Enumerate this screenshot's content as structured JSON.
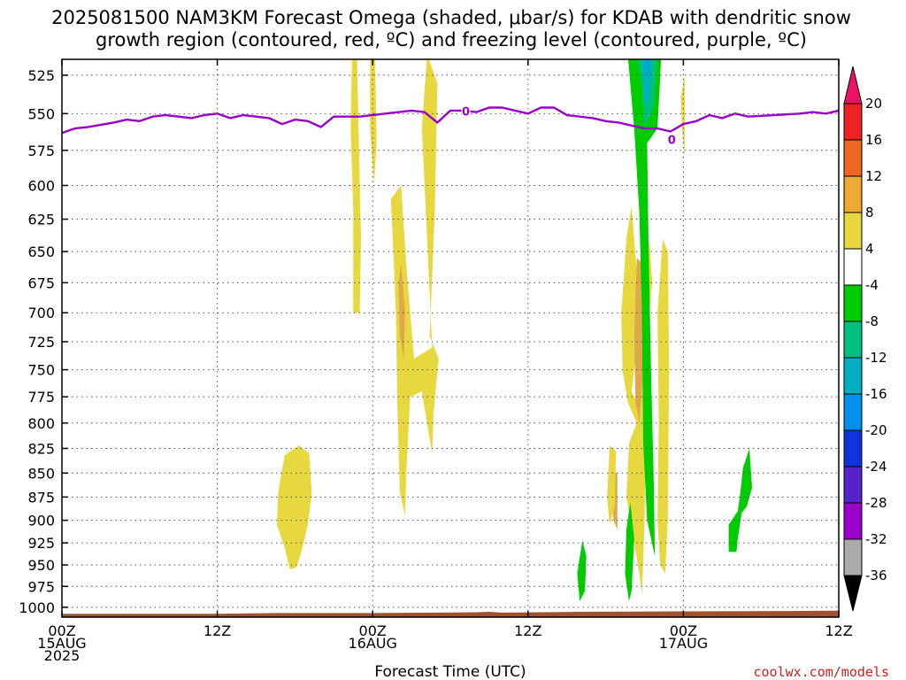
{
  "chart_data": {
    "type": "heatmap",
    "title_line1": "2025081500 NAM3KM Forecast Omega (shaded, μbar/s) for KDAB with dendritic snow",
    "title_line2": "growth region (contoured, red, ºC) and freezing level (contoured, purple, ºC)",
    "xlabel": "Forecast Time (UTC)",
    "credit": "coolwx.com/models",
    "x_ticks": [
      {
        "hour": 0,
        "lines": [
          "00Z",
          "15AUG",
          "2025"
        ]
      },
      {
        "hour": 12,
        "lines": [
          "12Z"
        ]
      },
      {
        "hour": 24,
        "lines": [
          "00Z",
          "16AUG"
        ]
      },
      {
        "hour": 36,
        "lines": [
          "12Z"
        ]
      },
      {
        "hour": 48,
        "lines": [
          "00Z",
          "17AUG"
        ]
      },
      {
        "hour": 60,
        "lines": [
          "12Z"
        ]
      }
    ],
    "xlim": [
      0,
      60
    ],
    "y_levels_hPa": [
      525,
      550,
      575,
      600,
      625,
      650,
      675,
      700,
      725,
      750,
      775,
      800,
      825,
      850,
      875,
      900,
      925,
      950,
      975,
      1000
    ],
    "ylim": [
      515,
      1012
    ],
    "y_scale": "log-pressure (inverted)",
    "grid": true,
    "colorbar": {
      "labels": [
        "20",
        "16",
        "12",
        "8",
        "4",
        "-4",
        "-8",
        "-12",
        "-16",
        "-20",
        "-24",
        "-28",
        "-32",
        "-36"
      ],
      "colors": [
        "#ee1166",
        "#ee2222",
        "#ee6622",
        "#eeaa33",
        "#e8d840",
        "#ffffff",
        "#00cc00",
        "#00c080",
        "#00b0c0",
        "#0090ee",
        "#1133dd",
        "#5522cc",
        "#9900cc",
        "#aaaaaa",
        "#000000"
      ]
    },
    "colors": {
      "omega_4_8": "#e8d840",
      "omega_8_12": "#e0a848",
      "omega_12_16": "#e07030",
      "omega_neg4_neg8": "#00cc00",
      "omega_neg8_neg12": "#00c080",
      "omega_neg12_neg16": "#00b0c0",
      "omega_neg16_neg20": "#0090ee",
      "freezing_level": "#9900cc",
      "terrain": "#a0522d"
    },
    "freezing_level_hPa": [
      [
        0,
        563
      ],
      [
        1,
        560
      ],
      [
        2,
        559
      ],
      [
        4,
        556
      ],
      [
        5,
        554
      ],
      [
        6,
        555
      ],
      [
        7,
        552
      ],
      [
        8,
        551
      ],
      [
        10,
        553
      ],
      [
        11,
        551
      ],
      [
        12,
        550
      ],
      [
        13,
        553
      ],
      [
        14,
        551
      ],
      [
        16,
        553
      ],
      [
        17,
        557
      ],
      [
        18,
        554
      ],
      [
        19,
        555
      ],
      [
        20,
        559
      ],
      [
        21,
        552
      ],
      [
        23,
        552
      ],
      [
        25,
        550
      ],
      [
        27,
        548
      ],
      [
        28,
        549
      ],
      [
        29,
        556
      ],
      [
        30,
        548
      ],
      [
        31,
        548
      ],
      [
        32,
        549
      ],
      [
        33,
        546
      ],
      [
        34,
        546
      ],
      [
        35,
        548
      ],
      [
        36,
        550
      ],
      [
        37,
        546
      ],
      [
        38,
        546
      ],
      [
        39,
        551
      ],
      [
        40,
        552
      ],
      [
        41,
        553
      ],
      [
        42,
        555
      ],
      [
        43,
        556
      ],
      [
        44,
        558
      ],
      [
        45,
        560
      ],
      [
        46,
        560
      ],
      [
        47,
        562
      ],
      [
        48,
        557
      ],
      [
        49,
        555
      ],
      [
        50,
        551
      ],
      [
        51,
        553
      ],
      [
        52,
        550
      ],
      [
        53,
        552
      ],
      [
        55,
        551
      ],
      [
        57,
        550
      ],
      [
        58,
        549
      ],
      [
        59,
        550
      ],
      [
        60,
        548
      ]
    ],
    "freezing_label": "0",
    "freezing_label_hours": [
      31.2,
      47.1
    ],
    "terrain_hPa": [
      [
        0,
        1008
      ],
      [
        12,
        1008
      ],
      [
        16.5,
        1007
      ],
      [
        24,
        1007
      ],
      [
        32,
        1006
      ],
      [
        33,
        1005.5
      ],
      [
        34,
        1006.5
      ],
      [
        40,
        1005.5
      ],
      [
        48,
        1005
      ],
      [
        56,
        1004.5
      ],
      [
        60,
        1004
      ]
    ],
    "regions": [
      {
        "band": "4_8",
        "pts": [
          [
            22.4,
            515
          ],
          [
            22.8,
            515
          ],
          [
            23.1,
            640
          ],
          [
            23.0,
            700
          ],
          [
            22.5,
            700
          ],
          [
            22.5,
            620
          ],
          [
            22.3,
            560
          ]
        ]
      },
      {
        "band": "4_8",
        "pts": [
          [
            23.8,
            515
          ],
          [
            24.2,
            515
          ],
          [
            24.3,
            570
          ],
          [
            24.1,
            600
          ],
          [
            23.8,
            560
          ]
        ]
      },
      {
        "band": "4_8",
        "pts": [
          [
            25.4,
            610
          ],
          [
            26.2,
            600
          ],
          [
            26.6,
            660
          ],
          [
            26.9,
            700
          ],
          [
            27.2,
            740
          ],
          [
            28.6,
            730
          ],
          [
            27.8,
            560
          ],
          [
            28.2,
            512
          ],
          [
            29.0,
            530
          ],
          [
            28.8,
            620
          ],
          [
            28.4,
            720
          ],
          [
            29.1,
            740
          ],
          [
            28.7,
            790
          ],
          [
            28.6,
            830
          ],
          [
            28.2,
            800
          ],
          [
            27.8,
            770
          ],
          [
            26.9,
            775
          ],
          [
            26.6,
            850
          ],
          [
            26.5,
            895
          ],
          [
            26.1,
            870
          ],
          [
            25.9,
            780
          ],
          [
            25.8,
            700
          ],
          [
            25.6,
            650
          ]
        ]
      },
      {
        "band": "8_12",
        "pts": [
          [
            26.0,
            675
          ],
          [
            26.2,
            660
          ],
          [
            26.5,
            700
          ],
          [
            26.4,
            740
          ],
          [
            26.1,
            720
          ]
        ]
      },
      {
        "band": "4_8",
        "pts": [
          [
            17.2,
            832
          ],
          [
            18.3,
            822
          ],
          [
            19.1,
            830
          ],
          [
            19.3,
            870
          ],
          [
            19.0,
            905
          ],
          [
            18.5,
            935
          ],
          [
            18.1,
            953
          ],
          [
            17.6,
            955
          ],
          [
            17.2,
            930
          ],
          [
            16.6,
            905
          ],
          [
            16.7,
            870
          ]
        ]
      },
      {
        "band": "4_8",
        "pts": [
          [
            44.0,
            615
          ],
          [
            44.5,
            680
          ],
          [
            44.3,
            740
          ],
          [
            44.0,
            770
          ],
          [
            44.6,
            785
          ],
          [
            45.6,
            675
          ],
          [
            45.4,
            645
          ],
          [
            44.9,
            640
          ],
          [
            44.8,
            625
          ],
          [
            45.2,
            720
          ],
          [
            45.0,
            900
          ],
          [
            44.8,
            985
          ],
          [
            44.6,
            960
          ],
          [
            44.2,
            925
          ],
          [
            43.6,
            875
          ],
          [
            43.8,
            820
          ],
          [
            44.4,
            800
          ],
          [
            43.7,
            780
          ],
          [
            43.3,
            750
          ],
          [
            43.2,
            700
          ],
          [
            43.6,
            640
          ]
        ]
      },
      {
        "band": "8_12",
        "pts": [
          [
            44.4,
            655
          ],
          [
            44.9,
            660
          ],
          [
            44.9,
            750
          ],
          [
            44.6,
            800
          ],
          [
            44.3,
            780
          ],
          [
            44.2,
            720
          ]
        ]
      },
      {
        "band": "8_12",
        "pts": [
          [
            42.6,
            850
          ],
          [
            42.9,
            850
          ],
          [
            42.9,
            910
          ],
          [
            42.6,
            900
          ],
          [
            42.5,
            880
          ]
        ]
      },
      {
        "band": "4_8",
        "pts": [
          [
            46.4,
            640
          ],
          [
            46.8,
            650
          ],
          [
            46.9,
            750
          ],
          [
            46.8,
            900
          ],
          [
            46.6,
            960
          ],
          [
            46.2,
            950
          ],
          [
            46.0,
            900
          ],
          [
            46.1,
            800
          ],
          [
            46.0,
            700
          ]
        ]
      },
      {
        "band": "4_8",
        "pts": [
          [
            47.8,
            540
          ],
          [
            48.1,
            525
          ],
          [
            48.1,
            580
          ],
          [
            47.9,
            560
          ]
        ]
      },
      {
        "band": "neg4_neg8",
        "pts": [
          [
            43.7,
            512
          ],
          [
            46.3,
            512
          ],
          [
            46.0,
            560
          ],
          [
            45.2,
            570
          ],
          [
            45.3,
            640
          ],
          [
            45.5,
            750
          ],
          [
            45.7,
            850
          ],
          [
            45.8,
            940
          ],
          [
            45.2,
            900
          ],
          [
            44.9,
            820
          ],
          [
            44.8,
            700
          ],
          [
            44.6,
            620
          ],
          [
            44.2,
            560
          ]
        ]
      },
      {
        "band": "neg8_neg12",
        "pts": [
          [
            44.4,
            512
          ],
          [
            46.0,
            512
          ],
          [
            45.7,
            545
          ],
          [
            45.0,
            560
          ],
          [
            44.8,
            530
          ]
        ]
      },
      {
        "band": "neg12_neg16",
        "pts": [
          [
            44.8,
            512
          ],
          [
            45.6,
            512
          ],
          [
            45.3,
            540
          ],
          [
            45.0,
            545
          ]
        ]
      },
      {
        "band": "neg16_neg20",
        "pts": [
          [
            45.1,
            512
          ],
          [
            45.4,
            512
          ],
          [
            45.3,
            525
          ]
        ]
      },
      {
        "band": "neg4_neg8",
        "pts": [
          [
            43.9,
            880
          ],
          [
            44.2,
            920
          ],
          [
            44.0,
            980
          ],
          [
            43.8,
            993
          ],
          [
            43.5,
            960
          ],
          [
            43.6,
            910
          ]
        ]
      },
      {
        "band": "neg4_neg8",
        "pts": [
          [
            40.2,
            922
          ],
          [
            40.5,
            940
          ],
          [
            40.4,
            980
          ],
          [
            40.0,
            993
          ],
          [
            39.8,
            960
          ]
        ]
      },
      {
        "band": "4_8",
        "pts": [
          [
            42.3,
            822
          ],
          [
            42.8,
            828
          ],
          [
            42.7,
            885
          ],
          [
            42.3,
            905
          ],
          [
            42.1,
            875
          ]
        ]
      },
      {
        "band": "neg4_neg8",
        "pts": [
          [
            51.5,
            905
          ],
          [
            52.2,
            890
          ],
          [
            52.4,
            870
          ],
          [
            52.6,
            845
          ],
          [
            53.1,
            825
          ],
          [
            53.3,
            865
          ],
          [
            52.9,
            885
          ],
          [
            52.5,
            892
          ],
          [
            52.2,
            920
          ],
          [
            52.1,
            935
          ],
          [
            51.5,
            935
          ]
        ]
      }
    ]
  }
}
